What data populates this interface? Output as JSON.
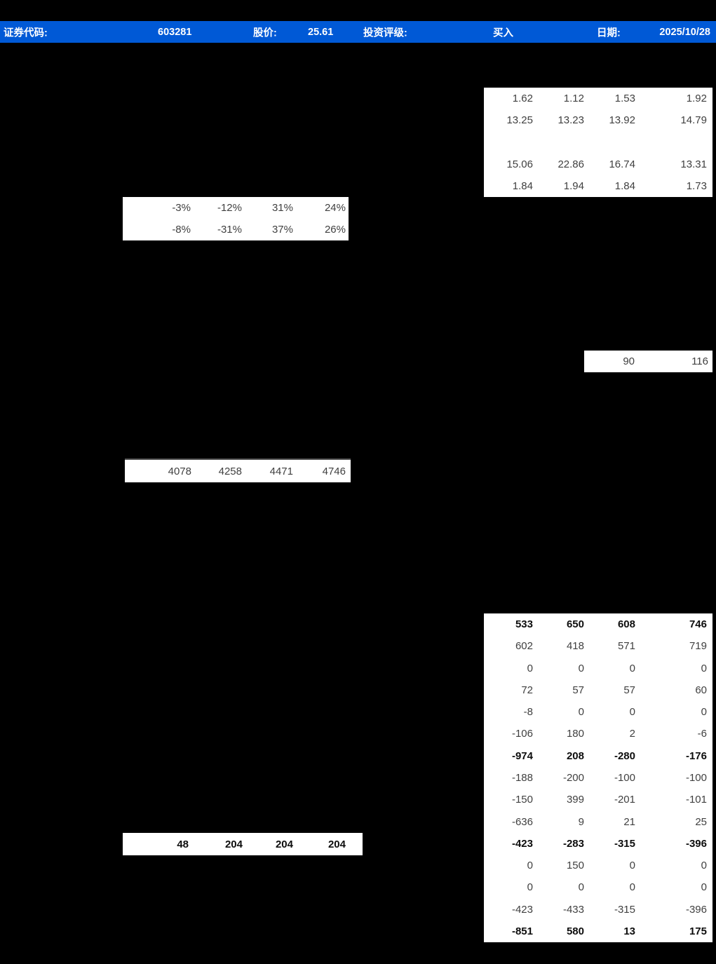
{
  "header": {
    "bg_color": "#0059d6",
    "security_code_label": "证券代码:",
    "security_code": "603281",
    "price_label": "股价:",
    "price": "25.61",
    "rating_label": "投资评级:",
    "rating": "买入",
    "date_label": "日期:",
    "date": "2025/10/28"
  },
  "tables": {
    "top_right_table": {
      "bold_rows": [],
      "rows": [
        [
          "1.62",
          "1.12",
          "1.53",
          "1.92"
        ],
        [
          "13.25",
          "13.23",
          "13.92",
          "14.79"
        ],
        [
          "",
          "",
          "",
          ""
        ],
        [
          "15.06",
          "22.86",
          "16.74",
          "13.31"
        ],
        [
          "1.84",
          "1.94",
          "1.84",
          "1.73"
        ]
      ]
    },
    "top_left_pct_table": {
      "bold_rows": [],
      "rows": [
        [
          "-3%",
          "-12%",
          "31%",
          "24%"
        ],
        [
          "-8%",
          "-31%",
          "37%",
          "26%"
        ]
      ]
    },
    "right_mini_strip": {
      "bold_rows": [],
      "rows": [
        [
          "90",
          "116"
        ]
      ]
    },
    "left_strip_4078": {
      "bold_rows": [],
      "rows": [
        [
          "4078",
          "4258",
          "4471",
          "4746"
        ]
      ]
    },
    "bottom_right_table": {
      "bold_rows": [
        0,
        6,
        10,
        14
      ],
      "rows": [
        [
          "533",
          "650",
          "608",
          "746"
        ],
        [
          "602",
          "418",
          "571",
          "719"
        ],
        [
          "0",
          "0",
          "0",
          "0"
        ],
        [
          "72",
          "57",
          "57",
          "60"
        ],
        [
          "-8",
          "0",
          "0",
          "0"
        ],
        [
          "-106",
          "180",
          "2",
          "-6"
        ],
        [
          "-974",
          "208",
          "-280",
          "-176"
        ],
        [
          "-188",
          "-200",
          "-100",
          "-100"
        ],
        [
          "-150",
          "399",
          "-201",
          "-101"
        ],
        [
          "-636",
          "9",
          "21",
          "25"
        ],
        [
          "-423",
          "-283",
          "-315",
          "-396"
        ],
        [
          "0",
          "150",
          "0",
          "0"
        ],
        [
          "0",
          "0",
          "0",
          "0"
        ],
        [
          "-423",
          "-433",
          "-315",
          "-396"
        ],
        [
          "-851",
          "580",
          "13",
          "175"
        ]
      ]
    },
    "bottom_left_strip": {
      "bold_rows": [
        0
      ],
      "rows": [
        [
          "48",
          "204",
          "204",
          "204"
        ]
      ]
    }
  }
}
